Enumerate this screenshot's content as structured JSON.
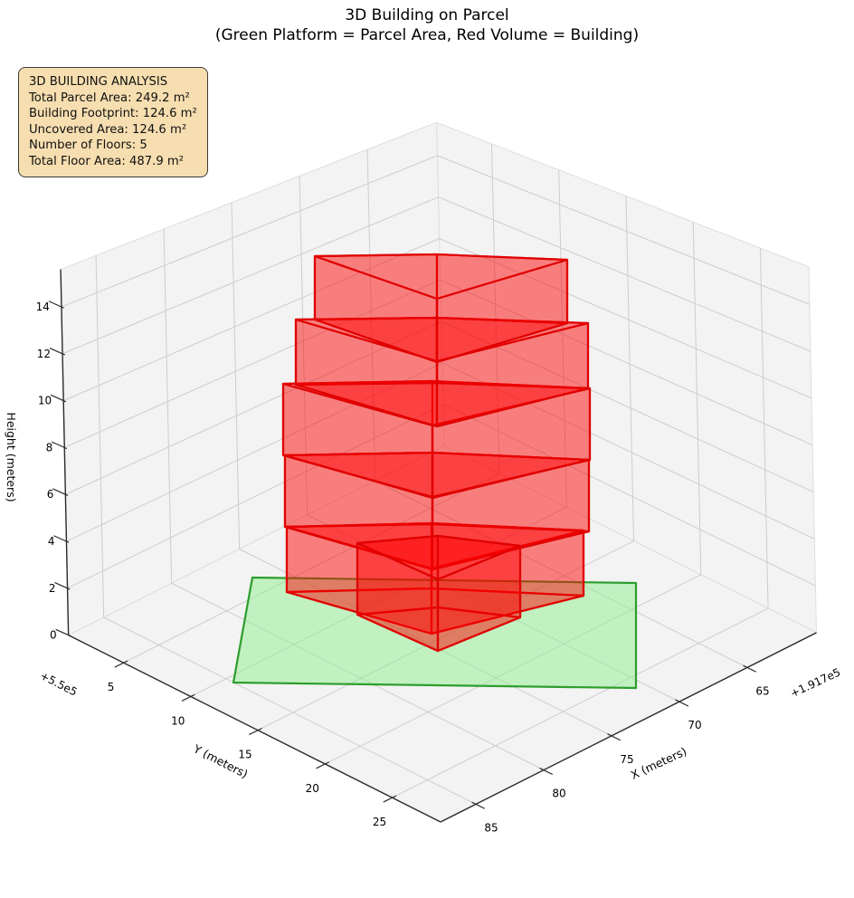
{
  "title": {
    "line1": "3D Building on Parcel",
    "line2": "(Green Platform = Parcel Area, Red Volume = Building)"
  },
  "info_box": {
    "lines": [
      "3D BUILDING ANALYSIS",
      "Total Parcel Area: 249.2 m²",
      "Building Footprint: 124.6 m²",
      "Uncovered Area: 124.6 m²",
      "Number of Floors: 5",
      "Total Floor Area: 487.9 m²"
    ]
  },
  "chart_data": {
    "type": "3d-building-scene",
    "title": "3D Building on Parcel",
    "subtitle": "(Green Platform = Parcel Area, Red Volume = Building)",
    "axes": {
      "x": {
        "label": "X (meters)",
        "ticks": [
          65,
          70,
          75,
          80,
          85
        ],
        "offset_text": "+1.917e5",
        "range": [
          59.9,
          87.6
        ]
      },
      "y": {
        "label": "Y (meters)",
        "ticks": [
          5,
          10,
          15,
          20,
          25
        ],
        "offset_text": "+5.5e5",
        "range": [
          0.9,
          28.6
        ]
      },
      "z": {
        "label": "Height (meters)",
        "ticks": [
          0,
          2,
          4,
          6,
          8,
          10,
          12,
          14
        ],
        "range": [
          0,
          15.6
        ]
      }
    },
    "parcel": {
      "description": "green platform = parcel area at z=0",
      "area_m2": 249.2,
      "approx_corners_xy_m": [
        [
          76.6,
          3.5
        ],
        [
          62.5,
          17.8
        ],
        [
          70.6,
          26.0
        ],
        [
          85.0,
          10.6
        ]
      ]
    },
    "building": {
      "description": "red volume = building",
      "num_floors": 5,
      "floor_height_m": 3.0,
      "footprint_area_m2": 124.6,
      "uncovered_area_m2": 124.6,
      "total_floor_area_m2": 487.9,
      "floor_z_ranges_m": [
        [
          0,
          3
        ],
        [
          3,
          6
        ],
        [
          6,
          9
        ],
        [
          9,
          12
        ],
        [
          12,
          15
        ]
      ],
      "parts": [
        "main-tower-5-floors",
        "front-annex-1-floor"
      ]
    }
  },
  "colors": {
    "building_face": "rgba(255,0,0,0.28)",
    "building_edge": "#e00000",
    "parcel_face": "rgba(144,238,144,0.5)",
    "parcel_edge": "#2d9e2d",
    "pane": "#f3f3f3",
    "pane_edge": "#dedede",
    "grid": "#cdcdcd",
    "axis_line": "#2a2a2a",
    "tick_text": "#000000",
    "info_box_bg": "#f6deb0"
  }
}
